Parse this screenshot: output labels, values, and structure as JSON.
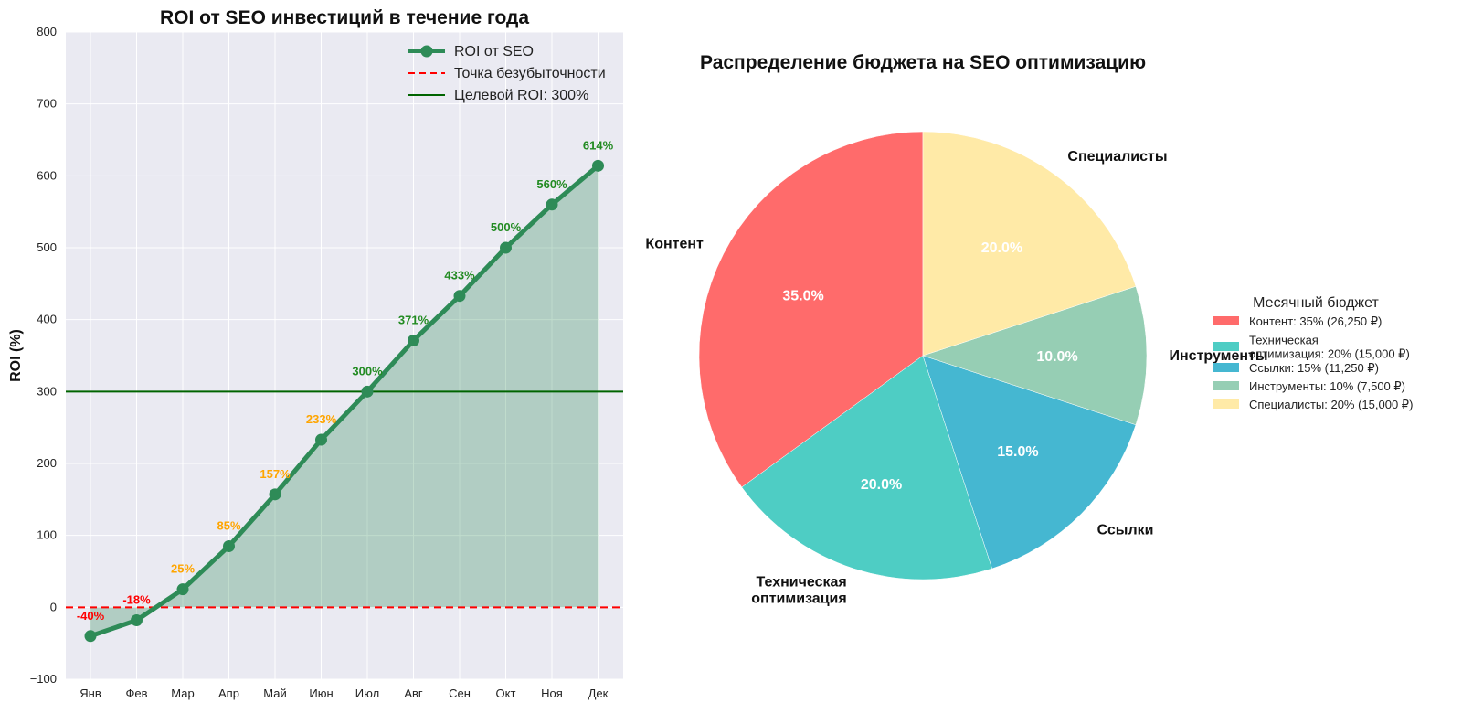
{
  "chart_data": [
    {
      "type": "line",
      "title": "ROI от SEO инвестиций в течение года",
      "ylabel": "ROI (%)",
      "xlabel": "",
      "categories": [
        "Янв",
        "Фев",
        "Мар",
        "Апр",
        "Май",
        "Июн",
        "Июл",
        "Авг",
        "Сен",
        "Окт",
        "Ноя",
        "Дек"
      ],
      "series": [
        {
          "name": "ROI от SEO",
          "values": [
            -40,
            -18,
            25,
            85,
            157,
            233,
            300,
            371,
            433,
            500,
            560,
            614
          ],
          "color": "#2e8b57"
        }
      ],
      "point_labels": [
        "-40%",
        "-18%",
        "25%",
        "85%",
        "157%",
        "233%",
        "300%",
        "371%",
        "433%",
        "500%",
        "560%",
        "614%"
      ],
      "label_colors": {
        "negative": "#ff0000",
        "below_target": "#ffa500",
        "at_or_above_target": "#228b22"
      },
      "reference_lines": [
        {
          "name": "Точка безубыточности",
          "value": 0,
          "color": "#ff0000",
          "style": "dashed"
        },
        {
          "name": "Целевой ROI: 300%",
          "value": 300,
          "color": "#006400",
          "style": "solid"
        }
      ],
      "ylim": [
        -100,
        800
      ],
      "yticks": [
        -100,
        0,
        100,
        200,
        300,
        400,
        500,
        600,
        700,
        800
      ],
      "ytick_labels": [
        "−100",
        "0",
        "100",
        "200",
        "300",
        "400",
        "500",
        "600",
        "700",
        "800"
      ],
      "fill_area": true,
      "grid": true,
      "legend_position": "top-right"
    },
    {
      "type": "pie",
      "title": "Распределение бюджета на SEO оптимизацию",
      "slices": [
        {
          "label": "Контент",
          "value": 35,
          "pct_label": "35.0%",
          "color": "#ff6b6b"
        },
        {
          "label": "Техническая\nоптимизация",
          "value": 20,
          "pct_label": "20.0%",
          "color": "#4ecdc4"
        },
        {
          "label": "Ссылки",
          "value": 15,
          "pct_label": "15.0%",
          "color": "#45b7d1"
        },
        {
          "label": "Инструменты",
          "value": 10,
          "pct_label": "10.0%",
          "color": "#96ceb4"
        },
        {
          "label": "Специалисты",
          "value": 20,
          "pct_label": "20.0%",
          "color": "#ffeaa7"
        }
      ],
      "legend_title": "Месячный бюджет",
      "legend_entries": [
        "Контент: 35% (26,250 ₽)",
        "Техническая\nоптимизация: 20% (15,000 ₽)",
        "Ссылки: 15% (11,250 ₽)",
        "Инструменты: 10% (7,500 ₽)",
        "Специалисты: 20% (15,000 ₽)"
      ],
      "legend_position": "right"
    }
  ]
}
